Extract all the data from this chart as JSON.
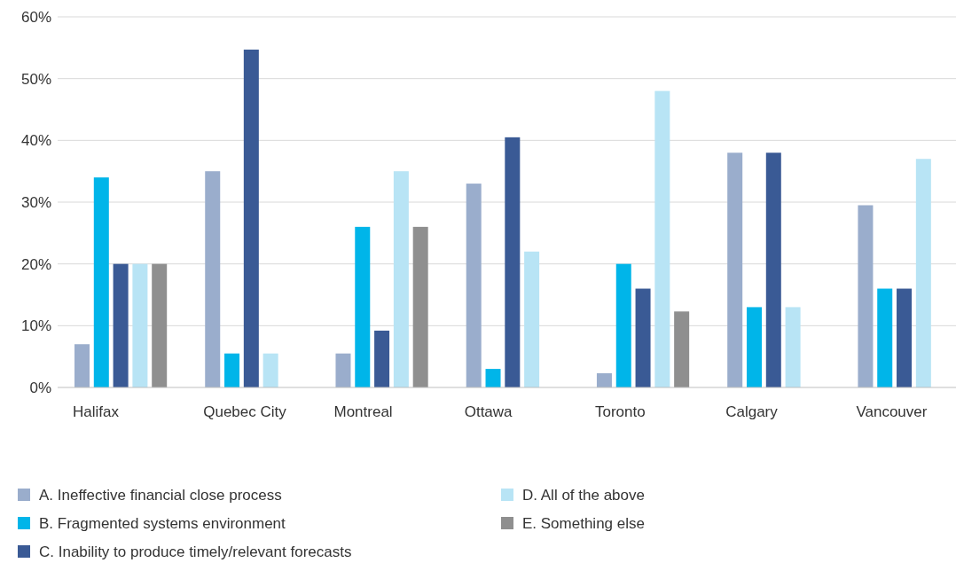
{
  "chart_data": {
    "type": "bar",
    "categories": [
      "Halifax",
      "Quebec City",
      "Montreal",
      "Ottawa",
      "Toronto",
      "Calgary",
      "Vancouver"
    ],
    "series": [
      {
        "name": "A. Ineffective financial close process",
        "color": "#9aadcc",
        "values": [
          7,
          35,
          5.5,
          33,
          2.3,
          38,
          29.5
        ]
      },
      {
        "name": "B. Fragmented systems environment",
        "color": "#00b5e9",
        "values": [
          34,
          5.5,
          26,
          3,
          20,
          13,
          16
        ]
      },
      {
        "name": "C. Inability to produce timely/relevant forecasts",
        "color": "#3a5a95",
        "values": [
          20,
          54.7,
          9.2,
          40.5,
          16,
          38,
          16
        ]
      },
      {
        "name": "D. All of the above",
        "color": "#b8e4f5",
        "values": [
          20,
          5.5,
          35,
          22,
          48,
          13,
          37
        ]
      },
      {
        "name": "E. Something else",
        "color": "#8f8f8f",
        "values": [
          20,
          null,
          26,
          null,
          12.3,
          null,
          null
        ]
      }
    ],
    "ylim": [
      0,
      60
    ],
    "yticks": [
      {
        "value": 0,
        "label": "0%"
      },
      {
        "value": 10,
        "label": "10%"
      },
      {
        "value": 20,
        "label": "20%"
      },
      {
        "value": 30,
        "label": "30%"
      },
      {
        "value": 40,
        "label": "40%"
      },
      {
        "value": 50,
        "label": "50%"
      },
      {
        "value": 60,
        "label": "60%"
      }
    ],
    "grid": "y",
    "legend": "bottom"
  }
}
